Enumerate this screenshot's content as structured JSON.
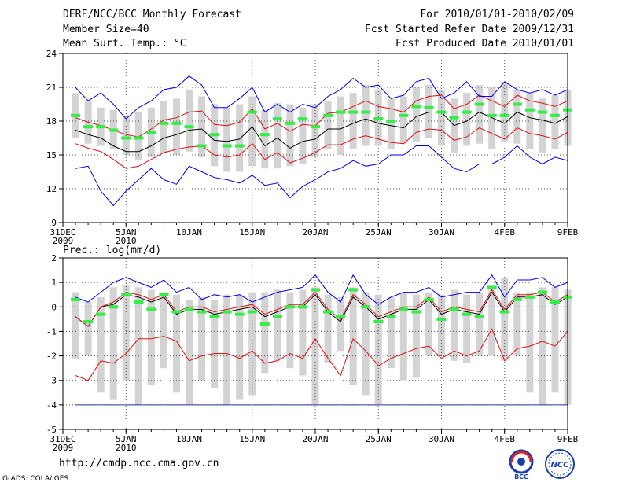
{
  "header": {
    "title": "DERF/NCC/BCC Monthly Forecast",
    "member_size": "Member Size=40",
    "variable1": "Mean Surf. Temp.: °C",
    "period": "For 2010/01/01-2010/02/09",
    "started": "Fcst Started Refer Date 2009/12/31",
    "produced": "Fcst Produced Date 2010/01/01"
  },
  "footer": {
    "url": "http://cmdp.ncc.cma.gov.cn",
    "credit": "GrADS: COLA/IGES",
    "logo_left": "BCC",
    "logo_right": "NCC"
  },
  "colors": {
    "bar": "#d3d3d3",
    "green": "#33ee44",
    "red": "#dd1111",
    "blue": "#0000ee",
    "mean": "#000000",
    "grid": "#555555"
  },
  "chart_data": [
    {
      "type": "line",
      "title": "Mean Surf. Temp.: °C",
      "ylim": [
        9,
        24
      ],
      "yticks": [
        9,
        12,
        15,
        18,
        21,
        24
      ],
      "xlim": [
        0,
        40
      ],
      "xticks": [
        {
          "x": 0,
          "label": "31DEC",
          "sub": "2009"
        },
        {
          "x": 5,
          "label": "5JAN",
          "sub": "2010"
        },
        {
          "x": 10,
          "label": "10JAN",
          "sub": ""
        },
        {
          "x": 15,
          "label": "15JAN",
          "sub": ""
        },
        {
          "x": 20,
          "label": "20JAN",
          "sub": ""
        },
        {
          "x": 25,
          "label": "25JAN",
          "sub": ""
        },
        {
          "x": 30,
          "label": "30JAN",
          "sub": ""
        },
        {
          "x": 35,
          "label": "4FEB",
          "sub": ""
        },
        {
          "x": 40,
          "label": "9FEB",
          "sub": ""
        }
      ],
      "days": [
        1,
        2,
        3,
        4,
        5,
        6,
        7,
        8,
        9,
        10,
        11,
        12,
        13,
        14,
        15,
        16,
        17,
        18,
        19,
        20,
        21,
        22,
        23,
        24,
        25,
        26,
        27,
        28,
        29,
        30,
        31,
        32,
        33,
        34,
        35,
        36,
        37,
        38,
        39,
        40
      ],
      "range_bars": [
        [
          16.5,
          20.5
        ],
        [
          16.0,
          19.8
        ],
        [
          15.8,
          19.2
        ],
        [
          15.5,
          19.0
        ],
        [
          15.0,
          18.5
        ],
        [
          14.5,
          18.8
        ],
        [
          14.8,
          19.2
        ],
        [
          15.2,
          19.8
        ],
        [
          15.0,
          20.0
        ],
        [
          15.3,
          20.8
        ],
        [
          14.8,
          20.2
        ],
        [
          14.0,
          19.5
        ],
        [
          13.5,
          19.2
        ],
        [
          13.5,
          19.5
        ],
        [
          14.0,
          20.2
        ],
        [
          13.8,
          19.0
        ],
        [
          13.8,
          19.6
        ],
        [
          14.0,
          19.5
        ],
        [
          14.2,
          19.2
        ],
        [
          14.8,
          19.5
        ],
        [
          15.5,
          19.8
        ],
        [
          15.0,
          20.2
        ],
        [
          15.5,
          20.5
        ],
        [
          15.8,
          21.2
        ],
        [
          15.8,
          20.8
        ],
        [
          15.5,
          20.0
        ],
        [
          16.0,
          20.2
        ],
        [
          16.2,
          21.0
        ],
        [
          16.5,
          21.2
        ],
        [
          15.8,
          20.8
        ],
        [
          15.2,
          20.0
        ],
        [
          15.8,
          20.5
        ],
        [
          16.0,
          21.2
        ],
        [
          15.5,
          21.0
        ],
        [
          16.2,
          21.5
        ],
        [
          16.0,
          20.8
        ],
        [
          15.5,
          20.5
        ],
        [
          15.2,
          20.0
        ],
        [
          15.5,
          20.3
        ],
        [
          15.8,
          20.8
        ]
      ],
      "observed": [
        18.5,
        17.5,
        17.5,
        17.2,
        16.5,
        16.5,
        17.0,
        17.8,
        17.8,
        17.5,
        15.8,
        16.8,
        15.8,
        15.8,
        18.8,
        16.8,
        18.2,
        17.8,
        18.2,
        17.5,
        18.5,
        18.8,
        18.8,
        18.8,
        18.2,
        18.0,
        18.5,
        19.3,
        19.2,
        18.8,
        18.3,
        18.8,
        19.5,
        18.5,
        18.5,
        19.5,
        19.0,
        18.8,
        18.5,
        19.0
      ],
      "series": [
        {
          "name": "ensemble-mean",
          "color": "#000000",
          "values": [
            17.2,
            16.8,
            16.5,
            15.8,
            15.3,
            15.3,
            15.8,
            16.5,
            16.8,
            17.2,
            17.3,
            16.3,
            16.2,
            16.4,
            17.5,
            15.8,
            16.5,
            15.6,
            16.2,
            16.4,
            17.3,
            17.3,
            17.8,
            18.2,
            17.8,
            17.6,
            17.4,
            18.4,
            18.8,
            18.8,
            17.6,
            18.0,
            18.8,
            18.3,
            17.8,
            18.8,
            18.3,
            18.1,
            17.8,
            18.4
          ]
        },
        {
          "name": "upper-sd",
          "color": "#dd1111",
          "values": [
            18.3,
            17.9,
            17.6,
            17.2,
            16.8,
            16.6,
            17.3,
            18.1,
            18.3,
            18.8,
            18.9,
            17.7,
            17.6,
            17.9,
            19.1,
            17.3,
            17.8,
            17.1,
            17.7,
            17.6,
            18.7,
            18.8,
            19.3,
            19.8,
            19.3,
            19.1,
            18.8,
            19.8,
            20.2,
            20.3,
            19.1,
            19.5,
            20.3,
            19.8,
            19.3,
            20.3,
            19.8,
            19.6,
            19.3,
            19.8
          ]
        },
        {
          "name": "lower-sd",
          "color": "#dd1111",
          "values": [
            16.0,
            15.6,
            15.3,
            14.6,
            13.8,
            14.0,
            14.6,
            15.2,
            15.5,
            15.7,
            15.8,
            15.0,
            14.8,
            15.0,
            16.0,
            14.6,
            15.2,
            14.3,
            14.7,
            15.2,
            15.9,
            15.9,
            16.4,
            16.7,
            16.4,
            16.1,
            16.0,
            17.0,
            17.3,
            17.2,
            16.3,
            16.6,
            17.4,
            16.9,
            16.4,
            17.4,
            16.9,
            16.7,
            16.4,
            17.0
          ]
        },
        {
          "name": "ensemble-max",
          "color": "#0000ee",
          "values": [
            21.0,
            19.8,
            20.5,
            19.5,
            18.2,
            19.2,
            19.8,
            20.8,
            21.0,
            22.0,
            21.2,
            19.2,
            19.2,
            20.0,
            21.0,
            18.8,
            19.5,
            18.8,
            19.5,
            19.2,
            20.2,
            20.8,
            21.8,
            21.0,
            21.2,
            20.0,
            20.3,
            21.5,
            21.8,
            20.0,
            20.5,
            21.5,
            20.2,
            20.2,
            21.5,
            20.8,
            20.5,
            20.8,
            20.3,
            20.8
          ]
        },
        {
          "name": "ensemble-min",
          "color": "#0000ee",
          "values": [
            13.8,
            14.0,
            11.8,
            10.5,
            11.8,
            12.8,
            13.8,
            12.8,
            12.4,
            14.0,
            13.5,
            13.0,
            12.8,
            12.5,
            13.2,
            12.3,
            12.5,
            11.2,
            12.2,
            12.8,
            13.5,
            13.8,
            14.5,
            14.0,
            14.2,
            15.0,
            15.0,
            15.8,
            15.8,
            14.8,
            13.8,
            13.5,
            14.2,
            14.2,
            14.8,
            15.8,
            14.8,
            14.2,
            14.8,
            14.5
          ]
        }
      ]
    },
    {
      "type": "line",
      "title": "Prec.: log(mm/d)",
      "ylim": [
        -5,
        2
      ],
      "yticks": [
        -5,
        -4,
        -3,
        -2,
        -1,
        0,
        1,
        2
      ],
      "xlim": [
        0,
        40
      ],
      "xticks": [
        {
          "x": 0,
          "label": "31DEC",
          "sub": "2009"
        },
        {
          "x": 5,
          "label": "5JAN",
          "sub": "2010"
        },
        {
          "x": 10,
          "label": "10JAN",
          "sub": ""
        },
        {
          "x": 15,
          "label": "15JAN",
          "sub": ""
        },
        {
          "x": 20,
          "label": "20JAN",
          "sub": ""
        },
        {
          "x": 25,
          "label": "25JAN",
          "sub": ""
        },
        {
          "x": 30,
          "label": "30JAN",
          "sub": ""
        },
        {
          "x": 35,
          "label": "4FEB",
          "sub": ""
        },
        {
          "x": 40,
          "label": "9FEB",
          "sub": ""
        }
      ],
      "days": [
        1,
        2,
        3,
        4,
        5,
        6,
        7,
        8,
        9,
        10,
        11,
        12,
        13,
        14,
        15,
        16,
        17,
        18,
        19,
        20,
        21,
        22,
        23,
        24,
        25,
        26,
        27,
        28,
        29,
        30,
        31,
        32,
        33,
        34,
        35,
        36,
        37,
        38,
        39,
        40
      ],
      "range_bars": [
        [
          -2.1,
          0.6
        ],
        [
          -2.0,
          0.2
        ],
        [
          -3.5,
          0.4
        ],
        [
          -3.8,
          0.8
        ],
        [
          -3.0,
          0.9
        ],
        [
          -4.0,
          0.8
        ],
        [
          -3.2,
          0.7
        ],
        [
          -2.5,
          0.6
        ],
        [
          -3.5,
          0.5
        ],
        [
          -4.0,
          0.3
        ],
        [
          -3.0,
          0.4
        ],
        [
          -3.3,
          0.3
        ],
        [
          -4.0,
          0.5
        ],
        [
          -3.8,
          0.5
        ],
        [
          -3.6,
          0.6
        ],
        [
          -2.7,
          0.6
        ],
        [
          -2.2,
          0.7
        ],
        [
          -2.5,
          0.6
        ],
        [
          -2.8,
          0.7
        ],
        [
          -4.0,
          0.8
        ],
        [
          -2.3,
          0.5
        ],
        [
          -1.8,
          0.4
        ],
        [
          -3.2,
          0.8
        ],
        [
          -3.6,
          0.6
        ],
        [
          -4.0,
          0.5
        ],
        [
          -2.5,
          0.4
        ],
        [
          -3.0,
          0.6
        ],
        [
          -2.9,
          0.5
        ],
        [
          -2.0,
          0.6
        ],
        [
          -2.0,
          0.5
        ],
        [
          -2.2,
          0.7
        ],
        [
          -2.3,
          0.5
        ],
        [
          -2.0,
          0.6
        ],
        [
          -2.0,
          0.8
        ],
        [
          -2.2,
          1.2
        ],
        [
          -2.0,
          0.6
        ],
        [
          -3.5,
          0.6
        ],
        [
          -4.0,
          0.8
        ],
        [
          -3.5,
          0.8
        ],
        [
          -4.0,
          0.7
        ]
      ],
      "observed": [
        0.3,
        -0.6,
        -0.3,
        0.0,
        0.5,
        0.2,
        -0.1,
        0.5,
        -0.2,
        -0.1,
        -0.2,
        -0.4,
        -0.2,
        -0.3,
        -0.2,
        -0.7,
        -0.4,
        0.0,
        0.0,
        0.7,
        -0.2,
        -0.4,
        0.7,
        0.0,
        -0.6,
        -0.4,
        -0.1,
        -0.2,
        0.3,
        -0.5,
        -0.1,
        -0.3,
        -0.4,
        0.8,
        -0.2,
        0.3,
        0.4,
        0.6,
        0.2,
        0.4
      ],
      "series": [
        {
          "name": "ensemble-mean",
          "color": "#000000",
          "values": [
            -0.4,
            -0.8,
            0.0,
            0.1,
            0.5,
            0.4,
            0.2,
            0.4,
            -0.3,
            -0.1,
            -0.1,
            -0.3,
            -0.2,
            -0.1,
            0.0,
            -0.4,
            -0.2,
            0.0,
            0.0,
            0.5,
            -0.2,
            -0.6,
            0.4,
            0.0,
            -0.5,
            -0.3,
            -0.1,
            -0.1,
            0.3,
            -0.3,
            -0.1,
            -0.2,
            -0.3,
            0.6,
            -0.2,
            0.4,
            0.4,
            0.5,
            0.1,
            0.4
          ]
        },
        {
          "name": "upper-sd",
          "color": "#dd1111",
          "values": [
            -0.4,
            -0.8,
            0.0,
            0.2,
            0.6,
            0.5,
            0.3,
            0.5,
            -0.2,
            0.0,
            0.0,
            -0.2,
            -0.1,
            0.0,
            0.1,
            -0.3,
            -0.1,
            0.1,
            0.1,
            0.6,
            -0.1,
            -0.5,
            0.5,
            0.1,
            -0.4,
            -0.2,
            0.0,
            0.0,
            0.4,
            -0.2,
            0.0,
            -0.1,
            -0.2,
            0.7,
            -0.1,
            0.5,
            0.5,
            0.6,
            0.2,
            0.5
          ]
        },
        {
          "name": "lower-sd",
          "color": "#dd1111",
          "values": [
            -2.8,
            -3.0,
            -2.2,
            -2.3,
            -1.9,
            -1.3,
            -1.3,
            -1.2,
            -1.4,
            -2.2,
            -2.0,
            -1.9,
            -1.9,
            -2.1,
            -1.8,
            -2.3,
            -2.2,
            -1.9,
            -2.1,
            -1.3,
            -2.1,
            -2.8,
            -1.3,
            -1.8,
            -2.4,
            -2.1,
            -1.9,
            -1.7,
            -1.6,
            -2.1,
            -1.8,
            -2.0,
            -1.8,
            -0.9,
            -2.2,
            -1.7,
            -1.6,
            -1.4,
            -1.6,
            -1.0
          ]
        },
        {
          "name": "ensemble-max",
          "color": "#0000ee",
          "values": [
            0.4,
            0.2,
            0.6,
            1.0,
            1.2,
            1.0,
            0.8,
            1.1,
            0.6,
            0.8,
            0.3,
            0.5,
            0.4,
            0.5,
            0.2,
            0.4,
            0.6,
            0.7,
            0.8,
            1.3,
            0.6,
            0.2,
            1.3,
            0.5,
            0.1,
            0.4,
            0.6,
            0.6,
            0.8,
            0.4,
            0.5,
            0.6,
            0.6,
            1.3,
            0.4,
            1.1,
            1.1,
            1.2,
            0.8,
            1.0
          ]
        },
        {
          "name": "ensemble-min",
          "color": "#3333aa",
          "values": [
            -4.0,
            -4.0,
            -4.0,
            -4.0,
            -4.0,
            -4.0,
            -4.0,
            -4.0,
            -4.0,
            -4.0,
            -4.0,
            -4.0,
            -4.0,
            -4.0,
            -4.0,
            -4.0,
            -4.0,
            -4.0,
            -4.0,
            -4.0,
            -4.0,
            -4.0,
            -4.0,
            -4.0,
            -4.0,
            -4.0,
            -4.0,
            -4.0,
            -4.0,
            -4.0,
            -4.0,
            -4.0,
            -4.0,
            -4.0,
            -4.0,
            -4.0,
            -4.0,
            -4.0,
            -4.0,
            -4.0
          ]
        }
      ]
    }
  ]
}
